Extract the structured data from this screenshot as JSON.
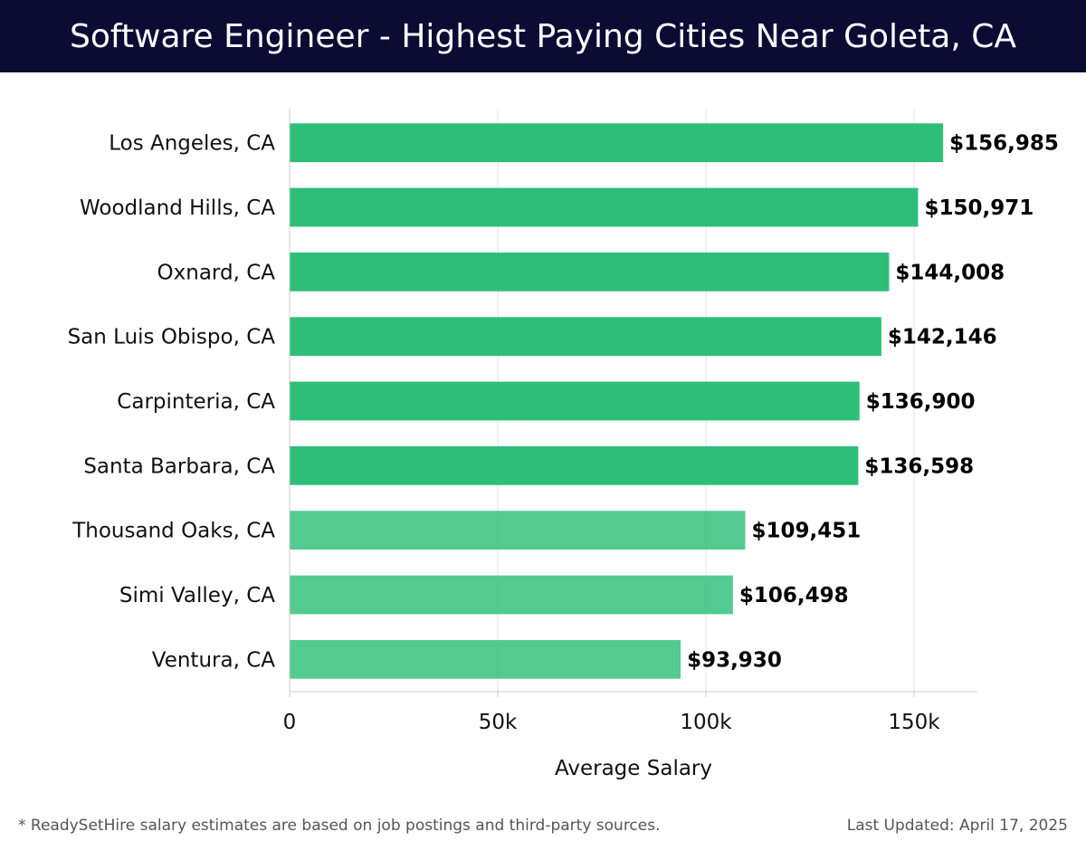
{
  "header": {
    "title": "Software Engineer - Highest Paying Cities Near Goleta, CA"
  },
  "chart_data": {
    "type": "bar",
    "orientation": "horizontal",
    "title": "Software Engineer - Highest Paying Cities Near Goleta, CA",
    "xlabel": "Average Salary",
    "ylabel": "",
    "xlim": [
      0,
      165000
    ],
    "xticks": [
      0,
      50000,
      100000,
      150000
    ],
    "xtick_labels": [
      "0",
      "50k",
      "100k",
      "150k"
    ],
    "grid": true,
    "categories": [
      "Los Angeles, CA",
      "Woodland Hills, CA",
      "Oxnard, CA",
      "San Luis Obispo, CA",
      "Carpinteria, CA",
      "Santa Barbara, CA",
      "Thousand Oaks, CA",
      "Simi Valley, CA",
      "Ventura, CA"
    ],
    "values": [
      156985,
      150971,
      144008,
      142146,
      136900,
      136598,
      109451,
      106498,
      93930
    ],
    "value_labels": [
      "$156,985",
      "$150,971",
      "$144,008",
      "$142,146",
      "$136,900",
      "$136,598",
      "$109,451",
      "$106,498",
      "$93,930"
    ],
    "colors": {
      "bar": "#2dbf78",
      "grid": "#e3e3e3",
      "axis": "#cccccc",
      "header_bg": "#0b0b34"
    }
  },
  "footer": {
    "note": "* ReadySetHire salary estimates are based on job postings and third-party sources.",
    "updated": "Last Updated: April 17, 2025"
  }
}
